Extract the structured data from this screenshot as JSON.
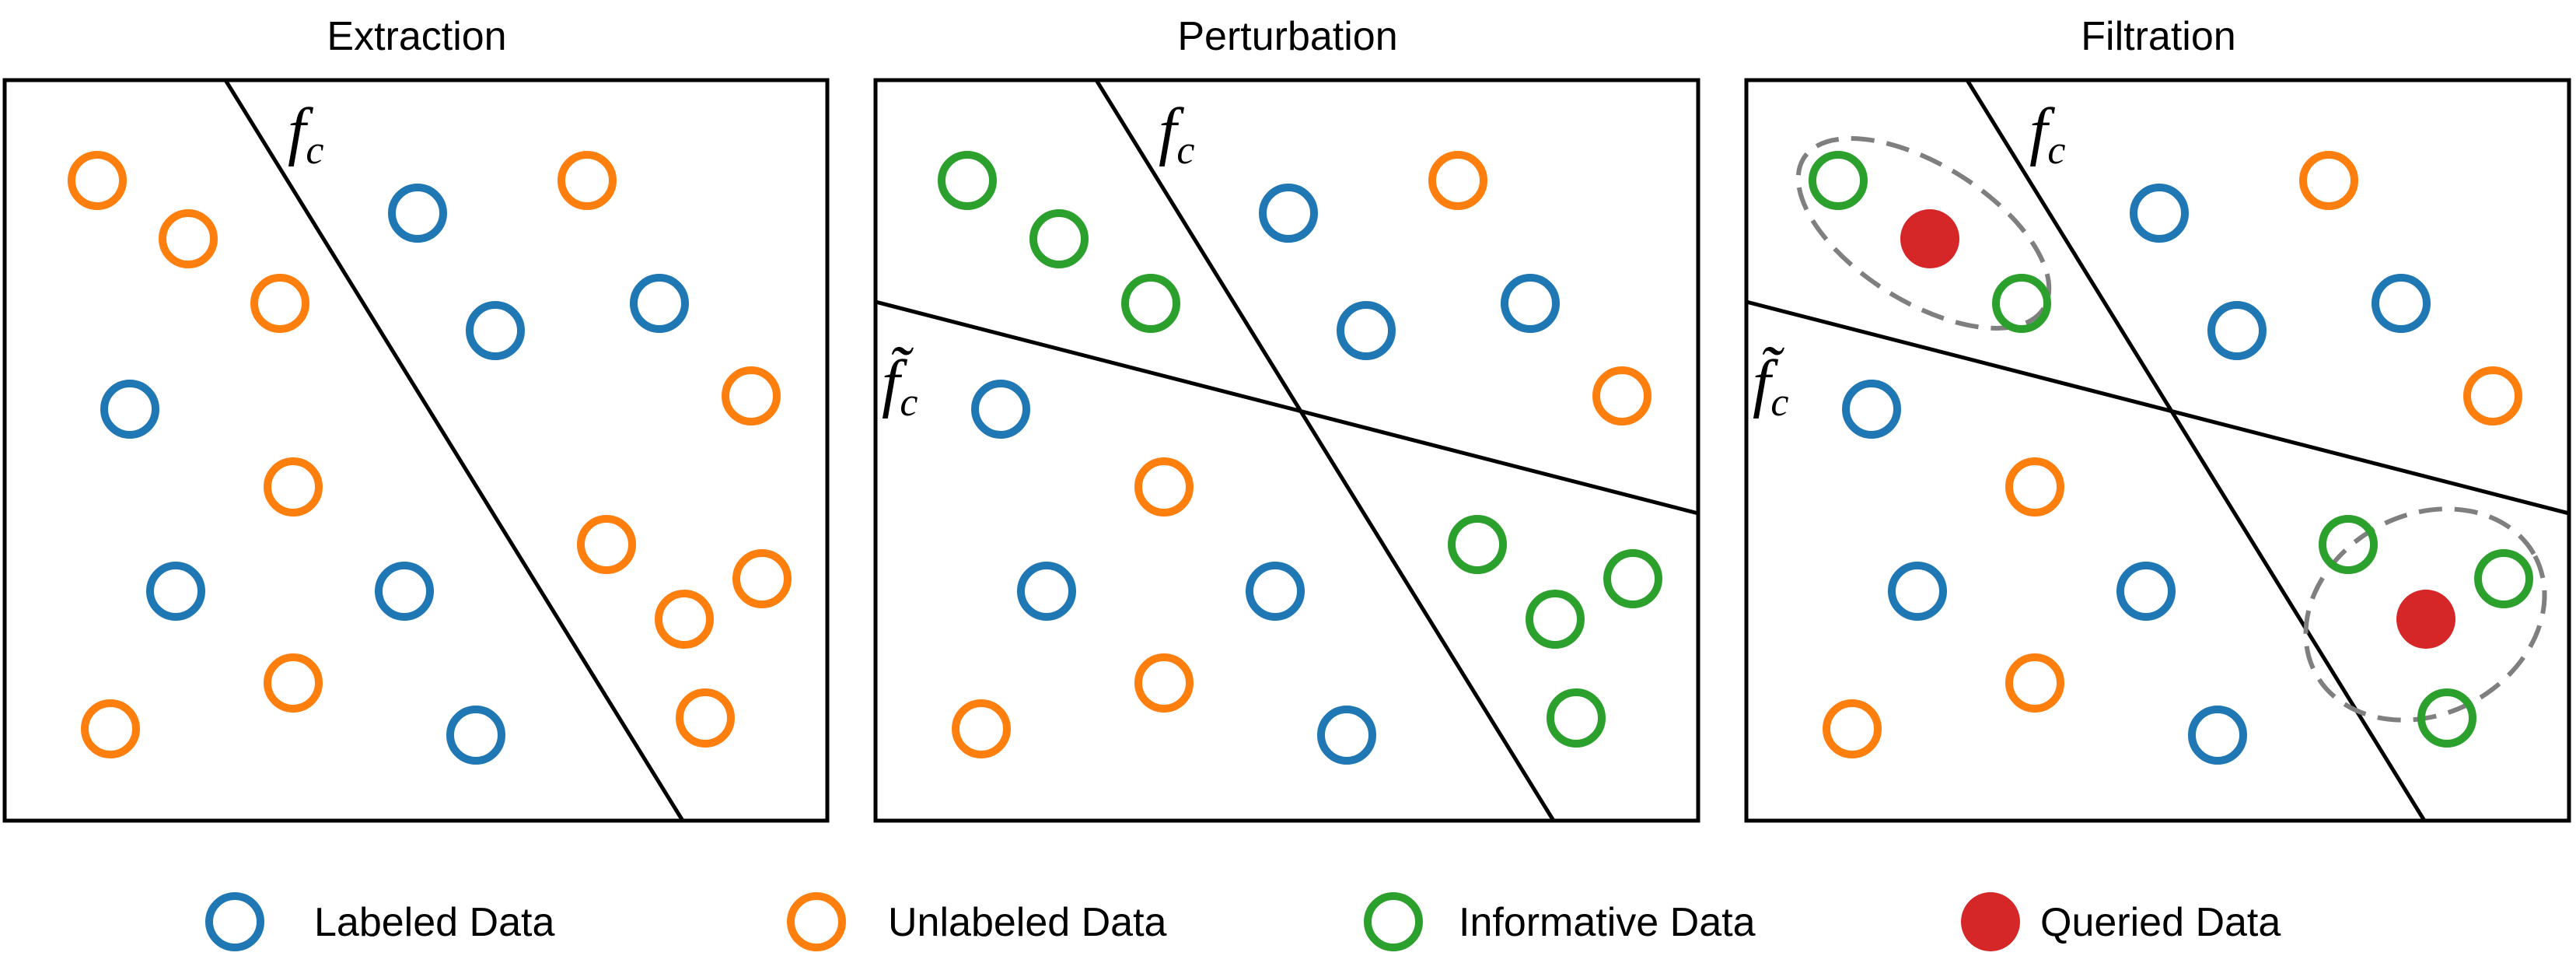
{
  "panels": [
    {
      "title": "Extraction",
      "boundary_label": "f",
      "boundary_subscript": "c"
    },
    {
      "title": "Perturbation",
      "boundary_label": "f",
      "boundary_subscript": "c",
      "perturbed_label": "f̃",
      "perturbed_subscript": "c"
    },
    {
      "title": "Filtration",
      "boundary_label": "f",
      "boundary_subscript": "c",
      "perturbed_label": "f̃",
      "perturbed_subscript": "c"
    }
  ],
  "legend": [
    {
      "label": "Labeled Data",
      "kind": "labeled",
      "color": "#1f77b4"
    },
    {
      "label": "Unlabeled Data",
      "kind": "unlabeled",
      "color": "#ff7f0e"
    },
    {
      "label": "Informative Data",
      "kind": "informative",
      "color": "#2ca02c"
    },
    {
      "label": "Queried Data",
      "kind": "queried",
      "color": "#d62728"
    }
  ],
  "colors": {
    "labeled": "#1f77b4",
    "unlabeled": "#ff7f0e",
    "informative": "#2ca02c",
    "queried": "#d62728",
    "frame": "#000000",
    "dashed_ellipse": "#7f7f7f"
  }
}
